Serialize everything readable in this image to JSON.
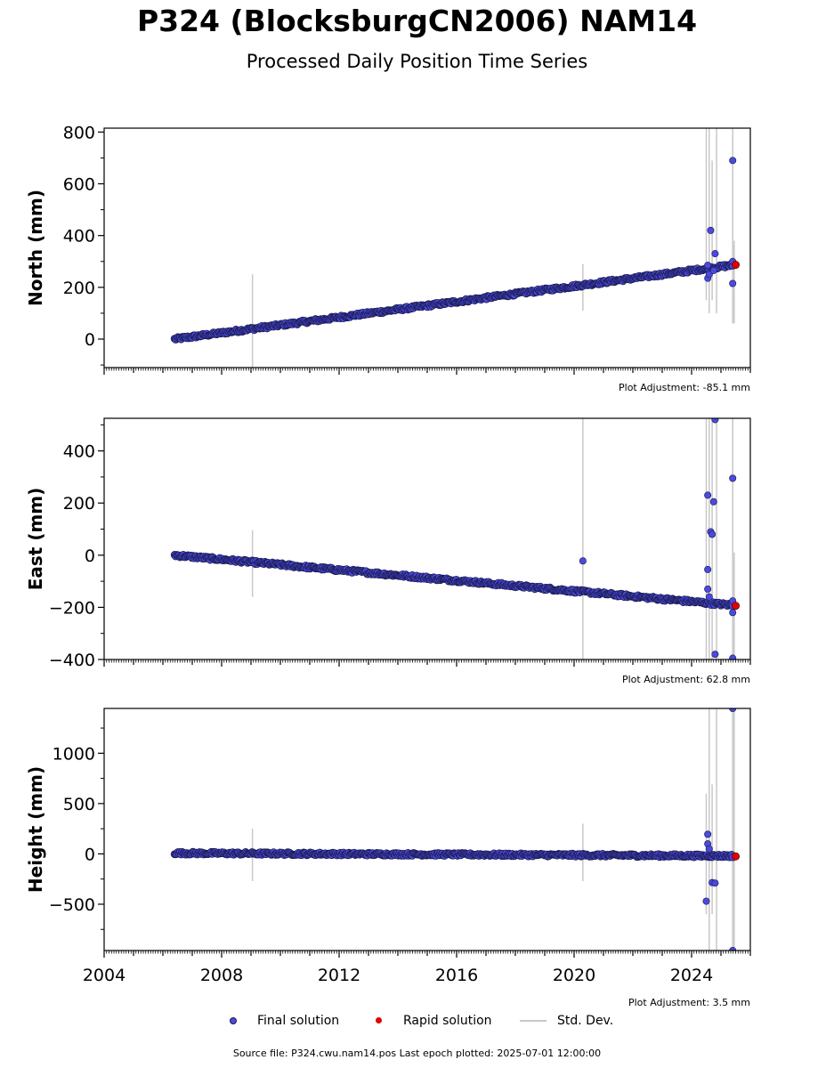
{
  "title": "P324 (BlocksburgCN2006) NAM14",
  "subtitle": "Processed Daily Position Time Series",
  "colors": {
    "final": "#4a4ae0",
    "final_edge": "#1a1a4a",
    "rapid": "#e00000",
    "stddev": "#c8c8c8",
    "trend": "#1c1c50"
  },
  "legend": {
    "final_label": "Final solution",
    "rapid_label": "Rapid solution",
    "stddev_label": "Std. Dev."
  },
  "source_text": "Source file: P324.cwu.nam14.pos  Last epoch plotted: 2025-07-01 12:00:00",
  "chart_data": [
    {
      "type": "scatter",
      "ylabel": "North (mm)",
      "adjustment_text": "Plot Adjustment: -85.1 mm",
      "xlim": [
        2004.0,
        2026.0
      ],
      "ylim": [
        -110,
        815
      ],
      "yticks": [
        0,
        200,
        400,
        600,
        800
      ],
      "yminor": 100,
      "trend": {
        "x_start": 2006.4,
        "y_start": 0,
        "x_end": 2025.4,
        "y_end": 286,
        "scatter": 6
      },
      "outliers": [
        {
          "x": 2024.55,
          "y": 285
        },
        {
          "x": 2024.55,
          "y": 235
        },
        {
          "x": 2024.6,
          "y": 250
        },
        {
          "x": 2024.65,
          "y": 420
        },
        {
          "x": 2024.8,
          "y": 330
        },
        {
          "x": 2024.75,
          "y": 265
        },
        {
          "x": 2025.4,
          "y": 690
        },
        {
          "x": 2025.4,
          "y": 215
        },
        {
          "x": 2025.4,
          "y": 300
        }
      ],
      "rapid": [
        {
          "x": 2025.5,
          "y": 287
        }
      ],
      "stddev": [
        {
          "x": 2009.05,
          "lo": -110,
          "hi": 250
        },
        {
          "x": 2020.3,
          "lo": 110,
          "hi": 290
        },
        {
          "x": 2024.5,
          "lo": 150,
          "hi": 815
        },
        {
          "x": 2024.6,
          "lo": 100,
          "hi": 815
        },
        {
          "x": 2024.7,
          "lo": 150,
          "hi": 690
        },
        {
          "x": 2024.85,
          "lo": 100,
          "hi": 815
        },
        {
          "x": 2025.4,
          "lo": 60,
          "hi": 815
        },
        {
          "x": 2025.45,
          "lo": 60,
          "hi": 380
        }
      ]
    },
    {
      "type": "scatter",
      "ylabel": "East (mm)",
      "adjustment_text": "Plot Adjustment: 62.8 mm",
      "xlim": [
        2004.0,
        2026.0
      ],
      "ylim": [
        -400,
        525
      ],
      "yticks": [
        -400,
        -200,
        0,
        200,
        400
      ],
      "yminor": 100,
      "trend": {
        "x_start": 2006.4,
        "y_start": 0,
        "x_end": 2025.4,
        "y_end": -192,
        "scatter": 6
      },
      "outliers": [
        {
          "x": 2020.3,
          "y": -22
        },
        {
          "x": 2024.55,
          "y": 230
        },
        {
          "x": 2024.55,
          "y": -55
        },
        {
          "x": 2024.55,
          "y": -130
        },
        {
          "x": 2024.6,
          "y": -160
        },
        {
          "x": 2024.65,
          "y": 90
        },
        {
          "x": 2024.7,
          "y": 80
        },
        {
          "x": 2024.75,
          "y": 205
        },
        {
          "x": 2024.8,
          "y": -380
        },
        {
          "x": 2024.8,
          "y": 520
        },
        {
          "x": 2025.4,
          "y": 295
        },
        {
          "x": 2025.4,
          "y": -175
        },
        {
          "x": 2025.4,
          "y": -220
        },
        {
          "x": 2025.4,
          "y": -395
        }
      ],
      "rapid": [
        {
          "x": 2025.5,
          "y": -194
        }
      ],
      "stddev": [
        {
          "x": 2009.05,
          "lo": -160,
          "hi": 95
        },
        {
          "x": 2020.3,
          "lo": -400,
          "hi": 525
        },
        {
          "x": 2024.5,
          "lo": -400,
          "hi": 525
        },
        {
          "x": 2024.6,
          "lo": -400,
          "hi": 525
        },
        {
          "x": 2024.7,
          "lo": -400,
          "hi": 525
        },
        {
          "x": 2024.85,
          "lo": -400,
          "hi": 525
        },
        {
          "x": 2025.4,
          "lo": -400,
          "hi": 525
        },
        {
          "x": 2025.45,
          "lo": -400,
          "hi": 10
        }
      ]
    },
    {
      "type": "scatter",
      "ylabel": "Height (mm)",
      "adjustment_text": "Plot Adjustment: 3.5 mm",
      "xlim": [
        2004.0,
        2026.0
      ],
      "ylim": [
        -960,
        1445
      ],
      "yticks": [
        -500,
        0,
        500,
        1000
      ],
      "yminor": 250,
      "trend": {
        "x_start": 2006.4,
        "y_start": 8,
        "x_end": 2025.4,
        "y_end": -20,
        "scatter": 14
      },
      "outliers": [
        {
          "x": 2024.5,
          "y": -470
        },
        {
          "x": 2024.55,
          "y": 195
        },
        {
          "x": 2024.55,
          "y": 100
        },
        {
          "x": 2024.6,
          "y": 50
        },
        {
          "x": 2024.7,
          "y": -285
        },
        {
          "x": 2024.8,
          "y": -290
        },
        {
          "x": 2025.4,
          "y": 1445
        },
        {
          "x": 2025.4,
          "y": -960
        }
      ],
      "rapid": [
        {
          "x": 2025.5,
          "y": -25
        }
      ],
      "stddev": [
        {
          "x": 2009.05,
          "lo": -270,
          "hi": 250
        },
        {
          "x": 2020.3,
          "lo": -270,
          "hi": 300
        },
        {
          "x": 2024.5,
          "lo": -600,
          "hi": 600
        },
        {
          "x": 2024.6,
          "lo": -960,
          "hi": 1445
        },
        {
          "x": 2024.7,
          "lo": -600,
          "hi": 690
        },
        {
          "x": 2024.85,
          "lo": -960,
          "hi": 1445
        },
        {
          "x": 2025.4,
          "lo": -960,
          "hi": 1445
        },
        {
          "x": 2025.45,
          "lo": -960,
          "hi": 1445
        }
      ]
    }
  ],
  "xticks": [
    2004,
    2008,
    2012,
    2016,
    2020,
    2024
  ],
  "xminor_per_year": 12
}
